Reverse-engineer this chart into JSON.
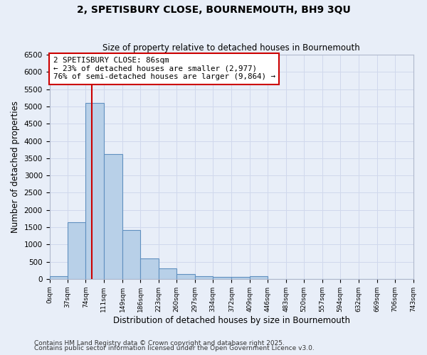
{
  "title1": "2, SPETISBURY CLOSE, BOURNEMOUTH, BH9 3QU",
  "title2": "Size of property relative to detached houses in Bournemouth",
  "xlabel": "Distribution of detached houses by size in Bournemouth",
  "ylabel": "Number of detached properties",
  "bin_edges": [
    0,
    37,
    74,
    111,
    149,
    186,
    223,
    260,
    297,
    334,
    372,
    409,
    446,
    483,
    520,
    557,
    594,
    632,
    669,
    706,
    743
  ],
  "bar_heights": [
    75,
    1650,
    5100,
    3620,
    1420,
    600,
    300,
    140,
    80,
    60,
    50,
    70,
    0,
    0,
    0,
    0,
    0,
    0,
    0,
    0
  ],
  "bar_color": "#b8d0e8",
  "bar_edge_color": "#6090c0",
  "vline_x": 86,
  "vline_color": "#cc0000",
  "annotation_line1": "2 SPETISBURY CLOSE: 86sqm",
  "annotation_line2": "← 23% of detached houses are smaller (2,977)",
  "annotation_line3": "76% of semi-detached houses are larger (9,864) →",
  "annotation_box_color": "#cc0000",
  "ylim": [
    0,
    6500
  ],
  "yticks": [
    0,
    500,
    1000,
    1500,
    2000,
    2500,
    3000,
    3500,
    4000,
    4500,
    5000,
    5500,
    6000,
    6500
  ],
  "tick_labels": [
    "0sqm",
    "37sqm",
    "74sqm",
    "111sqm",
    "149sqm",
    "186sqm",
    "223sqm",
    "260sqm",
    "297sqm",
    "334sqm",
    "372sqm",
    "409sqm",
    "446sqm",
    "483sqm",
    "520sqm",
    "557sqm",
    "594sqm",
    "632sqm",
    "669sqm",
    "706sqm",
    "743sqm"
  ],
  "grid_color": "#d0d8ec",
  "bg_color": "#e8eef8",
  "footnote1": "Contains HM Land Registry data © Crown copyright and database right 2025.",
  "footnote2": "Contains public sector information licensed under the Open Government Licence v3.0."
}
